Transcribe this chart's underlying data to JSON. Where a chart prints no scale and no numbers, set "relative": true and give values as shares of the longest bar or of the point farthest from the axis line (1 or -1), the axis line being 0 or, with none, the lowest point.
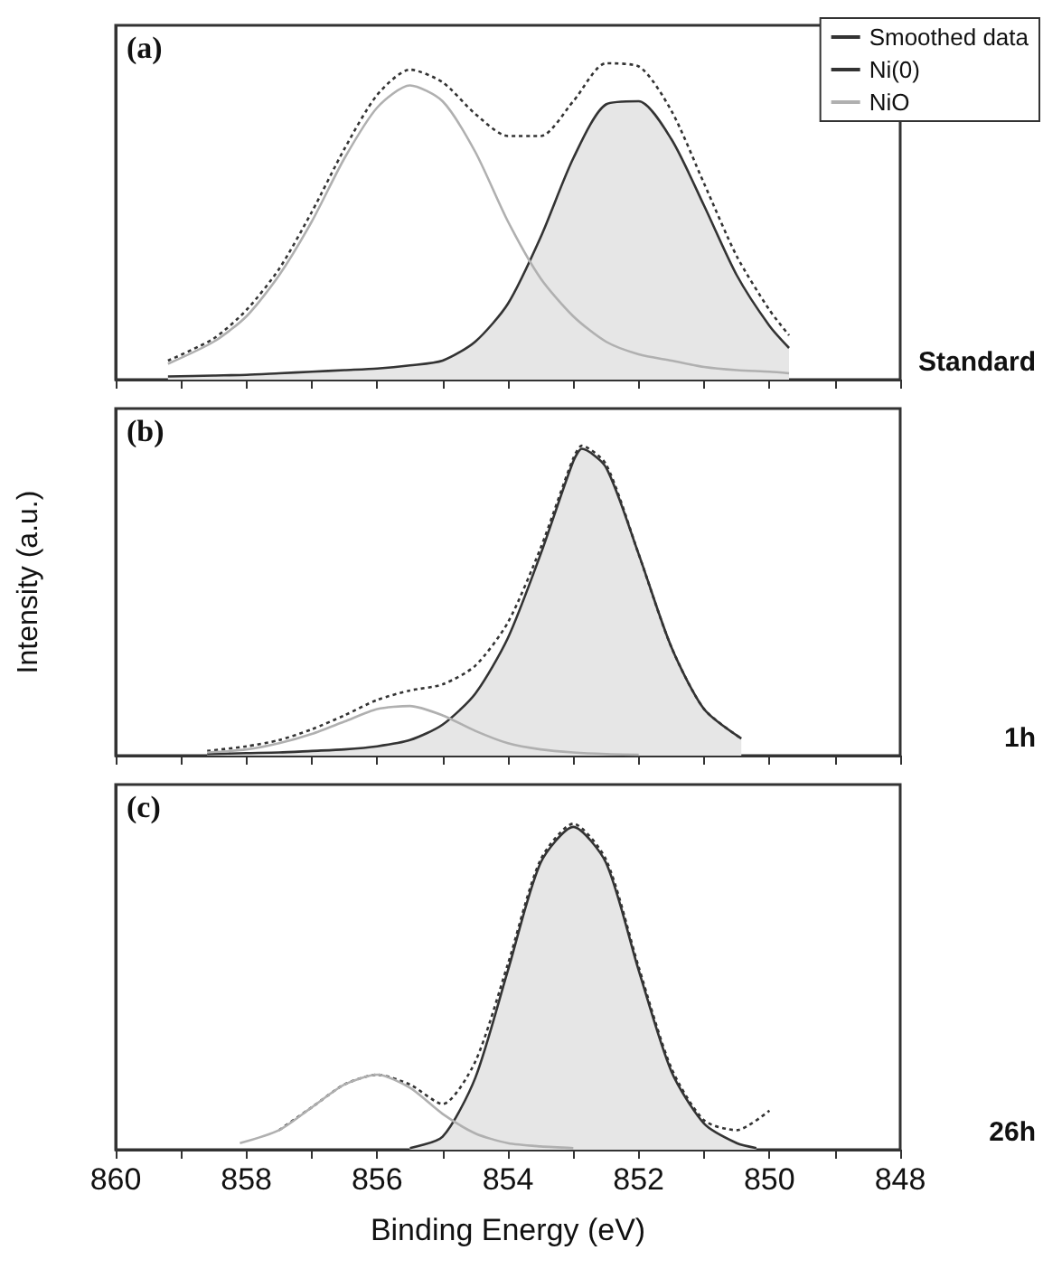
{
  "chart_data": [
    {
      "type": "line",
      "relative": true,
      "annotations": [
        "(a)",
        "Standard"
      ],
      "xlim": [
        860,
        848
      ],
      "xticks": [
        860,
        {
          "value": 859,
          "label": null
        },
        858,
        {
          "value": 857,
          "label": null
        },
        856,
        {
          "value": 855,
          "label": null
        },
        854,
        {
          "value": 853,
          "label": null
        },
        852,
        {
          "value": 851,
          "label": null
        },
        850,
        {
          "value": 849,
          "label": null
        },
        848
      ],
      "tick_labels": false,
      "legend": "top right",
      "series": [
        {
          "name": "Smoothed data",
          "color": "#333333",
          "line_style": "dotted",
          "x": [
            859.2,
            858.5,
            858,
            857.5,
            857,
            856.5,
            856,
            855.5,
            855,
            854.5,
            854,
            853.5,
            853,
            852.5,
            852,
            851.5,
            851,
            850.5,
            850,
            849.7
          ],
          "values": [
            0.06,
            0.13,
            0.22,
            0.35,
            0.53,
            0.73,
            0.9,
            0.98,
            0.94,
            0.84,
            0.77,
            0.77,
            0.88,
            1.0,
            0.99,
            0.85,
            0.62,
            0.39,
            0.22,
            0.14
          ]
        },
        {
          "name": "Ni(0)",
          "type": "area",
          "color": "#333333",
          "x": [
            859.2,
            858.5,
            858,
            857.5,
            857,
            856.5,
            856,
            855.5,
            855,
            854.5,
            854,
            853.5,
            853,
            852.5,
            852,
            851.5,
            851,
            850.5,
            850,
            849.7
          ],
          "values": [
            0.01,
            0.013,
            0.015,
            0.02,
            0.025,
            0.03,
            0.035,
            0.045,
            0.06,
            0.12,
            0.24,
            0.45,
            0.7,
            0.87,
            0.88,
            0.76,
            0.55,
            0.33,
            0.17,
            0.1
          ]
        },
        {
          "name": "NiO",
          "color": "#b0b0b0",
          "x": [
            859.2,
            858.5,
            858,
            857.5,
            857,
            856.5,
            856,
            855.5,
            855,
            854.5,
            854,
            853.5,
            853,
            852.5,
            852,
            851.5,
            851,
            850.5,
            850,
            849.7
          ],
          "values": [
            0.05,
            0.12,
            0.2,
            0.33,
            0.5,
            0.7,
            0.86,
            0.93,
            0.88,
            0.72,
            0.5,
            0.32,
            0.2,
            0.12,
            0.08,
            0.06,
            0.04,
            0.03,
            0.025,
            0.02
          ]
        }
      ]
    },
    {
      "type": "line",
      "relative": true,
      "annotations": [
        "(b)",
        "1h"
      ],
      "ylabel": "Intensity (a.u.)",
      "xlim": [
        860,
        848
      ],
      "xticks": [
        860,
        {
          "value": 859,
          "label": null
        },
        858,
        {
          "value": 857,
          "label": null
        },
        856,
        {
          "value": 855,
          "label": null
        },
        854,
        {
          "value": 853,
          "label": null
        },
        852,
        {
          "value": 851,
          "label": null
        },
        850,
        {
          "value": 849,
          "label": null
        },
        848
      ],
      "tick_labels": false,
      "series": [
        {
          "color": "#333333",
          "line_style": "dotted",
          "x": [
            858.6,
            858,
            857.5,
            857,
            856.5,
            856,
            855.5,
            855,
            854.5,
            854,
            853.5,
            853,
            852.87,
            852.5,
            852,
            851.5,
            851,
            850.43
          ],
          "values": [
            0.015,
            0.03,
            0.05,
            0.085,
            0.13,
            0.18,
            0.21,
            0.23,
            0.29,
            0.43,
            0.67,
            0.96,
            1.0,
            0.94,
            0.65,
            0.35,
            0.15,
            0.055
          ]
        },
        {
          "type": "area",
          "color": "#333333",
          "x": [
            858.6,
            858,
            857.5,
            857,
            856.5,
            856,
            855.5,
            855,
            854.5,
            854,
            853.5,
            853,
            852.87,
            852.5,
            852,
            851.5,
            851,
            850.43
          ],
          "values": [
            0.005,
            0.008,
            0.01,
            0.015,
            0.02,
            0.03,
            0.05,
            0.1,
            0.2,
            0.38,
            0.65,
            0.95,
            0.99,
            0.93,
            0.65,
            0.35,
            0.15,
            0.055
          ]
        },
        {
          "color": "#b0b0b0",
          "x": [
            858.6,
            858,
            857.5,
            857,
            856.5,
            856,
            855.5,
            855,
            854.5,
            854,
            853.5,
            853,
            852.5,
            852
          ],
          "values": [
            0.01,
            0.02,
            0.04,
            0.07,
            0.11,
            0.15,
            0.16,
            0.13,
            0.08,
            0.04,
            0.02,
            0.01,
            0.005,
            0.003
          ]
        }
      ]
    },
    {
      "type": "line",
      "relative": true,
      "annotations": [
        "(c)",
        "26h"
      ],
      "xlabel": "Binding Energy (eV)",
      "xlim": [
        860,
        848
      ],
      "xticks": [
        860,
        {
          "value": 859,
          "label": null
        },
        858,
        {
          "value": 857,
          "label": null
        },
        856,
        {
          "value": 855,
          "label": null
        },
        854,
        {
          "value": 853,
          "label": null
        },
        852,
        {
          "value": 851,
          "label": null
        },
        850,
        {
          "value": 849,
          "label": null
        },
        848
      ],
      "tick_labels": "x",
      "series": [
        {
          "color": "#333333",
          "line_style": "dotted",
          "x": [
            857.5,
            857,
            856.5,
            856,
            855.5,
            855,
            854.5,
            854,
            853.5,
            853,
            852.5,
            852,
            851.5,
            851,
            850.5,
            850
          ],
          "values": [
            0.06,
            0.13,
            0.2,
            0.23,
            0.2,
            0.14,
            0.27,
            0.57,
            0.89,
            1.0,
            0.89,
            0.56,
            0.25,
            0.09,
            0.06,
            0.12
          ]
        },
        {
          "type": "area",
          "color": "#333333",
          "x": [
            855.5,
            855,
            854.5,
            854,
            853.5,
            853,
            852.5,
            852,
            851.5,
            851,
            850.5,
            850.2
          ],
          "values": [
            0.005,
            0.04,
            0.22,
            0.55,
            0.88,
            0.99,
            0.88,
            0.55,
            0.24,
            0.08,
            0.02,
            0.005
          ]
        },
        {
          "color": "#b0b0b0",
          "x": [
            858.1,
            857.5,
            857,
            856.5,
            856,
            855.5,
            855,
            854.5,
            854,
            853.5,
            853
          ],
          "values": [
            0.02,
            0.06,
            0.13,
            0.2,
            0.23,
            0.19,
            0.11,
            0.05,
            0.02,
            0.01,
            0.005
          ]
        }
      ]
    }
  ]
}
